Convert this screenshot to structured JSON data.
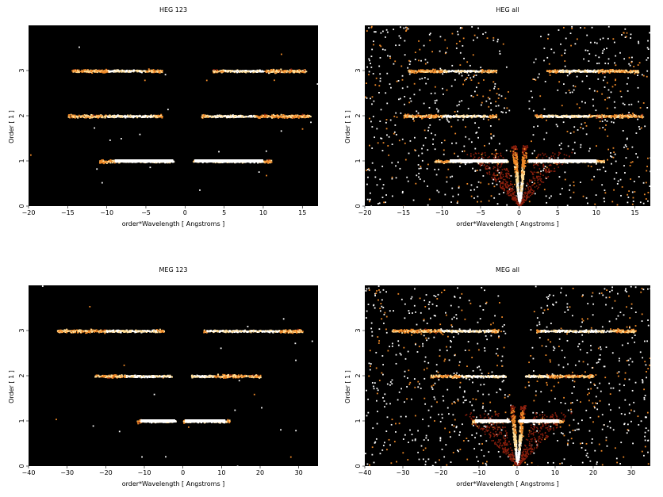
{
  "colors": {
    "background": "#000000",
    "hot_white": "#ffffff",
    "hot_yellow": "#ffdc96",
    "hot_orange": "#f08a28",
    "hot_red": "#8a1e0c"
  },
  "chart_data": [
    {
      "type": "heatmap",
      "title": "HEG 123",
      "xlabel": "order*Wavelength [ Angstroms ]",
      "ylabel": "Order [ 1 ]",
      "xlim": [
        -20,
        17
      ],
      "ylim": [
        0,
        4
      ],
      "xticks": [
        -20,
        -15,
        -10,
        -5,
        0,
        5,
        10,
        15
      ],
      "yticks": [
        0,
        1,
        2,
        3
      ],
      "bands": [
        {
          "order": 1,
          "x_start": -11,
          "x_end": -1.5,
          "core_start": -9,
          "core_end": -1.5
        },
        {
          "order": 1,
          "x_start": 1,
          "x_end": 11,
          "core_start": 1.2,
          "core_end": 10
        },
        {
          "order": 2,
          "x_start": -15,
          "x_end": -3,
          "core_start": -10,
          "core_end": -4
        },
        {
          "order": 2,
          "x_start": 2,
          "x_end": 16,
          "core_start": 3,
          "core_end": 9
        },
        {
          "order": 3,
          "x_start": -14.5,
          "x_end": -3,
          "core_start": -10,
          "core_end": -5
        },
        {
          "order": 3,
          "x_start": 3.5,
          "x_end": 15.5,
          "core_start": 5,
          "core_end": 10
        }
      ],
      "background_noise": "low",
      "zeroth_order_cone": false
    },
    {
      "type": "heatmap",
      "title": "HEG all",
      "xlabel": "order*Wavelength [ Angstroms ]",
      "ylabel": "Order [ 1 ]",
      "xlim": [
        -20,
        17
      ],
      "ylim": [
        0,
        4
      ],
      "xticks": [
        -20,
        -15,
        -10,
        -5,
        0,
        5,
        10,
        15
      ],
      "yticks": [
        0,
        1,
        2,
        3
      ],
      "bands": [
        {
          "order": 1,
          "x_start": -11,
          "x_end": -1.5,
          "core_start": -9,
          "core_end": -1.5
        },
        {
          "order": 1,
          "x_start": 1,
          "x_end": 11,
          "core_start": 1.2,
          "core_end": 10
        },
        {
          "order": 2,
          "x_start": -15,
          "x_end": -3,
          "core_start": -10,
          "core_end": -4
        },
        {
          "order": 2,
          "x_start": 2,
          "x_end": 16,
          "core_start": 3,
          "core_end": 9
        },
        {
          "order": 3,
          "x_start": -14.5,
          "x_end": -3,
          "core_start": -10,
          "core_end": -5
        },
        {
          "order": 3,
          "x_start": 3.5,
          "x_end": 15.5,
          "core_start": 5,
          "core_end": 10
        }
      ],
      "background_noise": "high",
      "zeroth_order_cone": true
    },
    {
      "type": "heatmap",
      "title": "MEG 123",
      "xlabel": "order*Wavelength [ Angstroms ]",
      "ylabel": "Order [ 1 ]",
      "xlim": [
        -40,
        35
      ],
      "ylim": [
        0,
        4
      ],
      "xticks": [
        -40,
        -30,
        -20,
        -10,
        0,
        10,
        20,
        30
      ],
      "yticks": [
        0,
        1,
        2,
        3
      ],
      "bands": [
        {
          "order": 1,
          "x_start": -12,
          "x_end": -2,
          "core_start": -11,
          "core_end": -2
        },
        {
          "order": 1,
          "x_start": 0,
          "x_end": 12,
          "core_start": 0.5,
          "core_end": 11
        },
        {
          "order": 2,
          "x_start": -23,
          "x_end": -3,
          "core_start": -15,
          "core_end": -3
        },
        {
          "order": 2,
          "x_start": 2,
          "x_end": 20,
          "core_start": 2,
          "core_end": 8
        },
        {
          "order": 3,
          "x_start": -33,
          "x_end": -5,
          "core_start": -20,
          "core_end": -7
        },
        {
          "order": 3,
          "x_start": 5,
          "x_end": 31,
          "core_start": 6,
          "core_end": 25
        }
      ],
      "background_noise": "low",
      "zeroth_order_cone": false
    },
    {
      "type": "heatmap",
      "title": "MEG all",
      "xlabel": "order*Wavelength [ Angstroms ]",
      "ylabel": "Order [ 1 ]",
      "xlim": [
        -40,
        35
      ],
      "ylim": [
        0,
        4
      ],
      "xticks": [
        -40,
        -30,
        -20,
        -10,
        0,
        10,
        20,
        30
      ],
      "yticks": [
        0,
        1,
        2,
        3
      ],
      "bands": [
        {
          "order": 1,
          "x_start": -12,
          "x_end": -2,
          "core_start": -11,
          "core_end": -2
        },
        {
          "order": 1,
          "x_start": 0,
          "x_end": 12,
          "core_start": 0.5,
          "core_end": 11
        },
        {
          "order": 2,
          "x_start": -23,
          "x_end": -3,
          "core_start": -15,
          "core_end": -3
        },
        {
          "order": 2,
          "x_start": 2,
          "x_end": 20,
          "core_start": 2,
          "core_end": 8
        },
        {
          "order": 3,
          "x_start": -33,
          "x_end": -5,
          "core_start": -20,
          "core_end": -7
        },
        {
          "order": 3,
          "x_start": 5,
          "x_end": 31,
          "core_start": 6,
          "core_end": 25
        }
      ],
      "background_noise": "high",
      "zeroth_order_cone": true
    }
  ]
}
